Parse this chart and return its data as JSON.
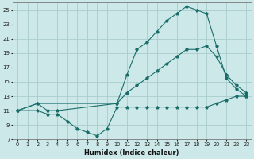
{
  "xlabel": "Humidex (Indice chaleur)",
  "bg_color": "#cde8e8",
  "line_color": "#1a6e6a",
  "grid_color": "#aacccc",
  "xlim": [
    -0.5,
    23.5
  ],
  "ylim": [
    7,
    26
  ],
  "xticks": [
    0,
    1,
    2,
    3,
    4,
    5,
    6,
    7,
    8,
    9,
    10,
    11,
    12,
    13,
    14,
    15,
    16,
    17,
    18,
    19,
    20,
    21,
    22,
    23
  ],
  "yticks": [
    7,
    9,
    11,
    13,
    15,
    17,
    19,
    21,
    23,
    25
  ],
  "curve_max": {
    "x": [
      0,
      2,
      10,
      11,
      12,
      13,
      14,
      15,
      16,
      17,
      18,
      19,
      20,
      21,
      22,
      23
    ],
    "y": [
      11,
      12,
      12,
      16,
      19.5,
      20.5,
      22,
      23.5,
      24.5,
      25.5,
      25,
      24.5,
      20,
      15.5,
      14,
      13
    ]
  },
  "curve_min": {
    "x": [
      0,
      2,
      3,
      4,
      5,
      6,
      7,
      8,
      9,
      10,
      11,
      12,
      13,
      14,
      15,
      16,
      17,
      18,
      19,
      20,
      21,
      22,
      23
    ],
    "y": [
      11,
      11,
      10.5,
      10.5,
      9.5,
      8.5,
      8,
      7.5,
      8.5,
      11.5,
      11.5,
      11.5,
      11.5,
      11.5,
      11.5,
      11.5,
      11.5,
      11.5,
      11.5,
      12,
      12.5,
      13,
      13
    ]
  },
  "curve_avg": {
    "x": [
      0,
      2,
      3,
      4,
      10,
      11,
      12,
      13,
      14,
      15,
      16,
      17,
      18,
      19,
      20,
      21,
      22,
      23
    ],
    "y": [
      11,
      12,
      11,
      11,
      12,
      13.5,
      14.5,
      15.5,
      16.5,
      17.5,
      18.5,
      19.5,
      19.5,
      20,
      18.5,
      16,
      14.5,
      13.5
    ]
  },
  "xlabel_fontsize": 6.0,
  "tick_fontsize": 4.8,
  "xlabel_fontweight": "bold"
}
